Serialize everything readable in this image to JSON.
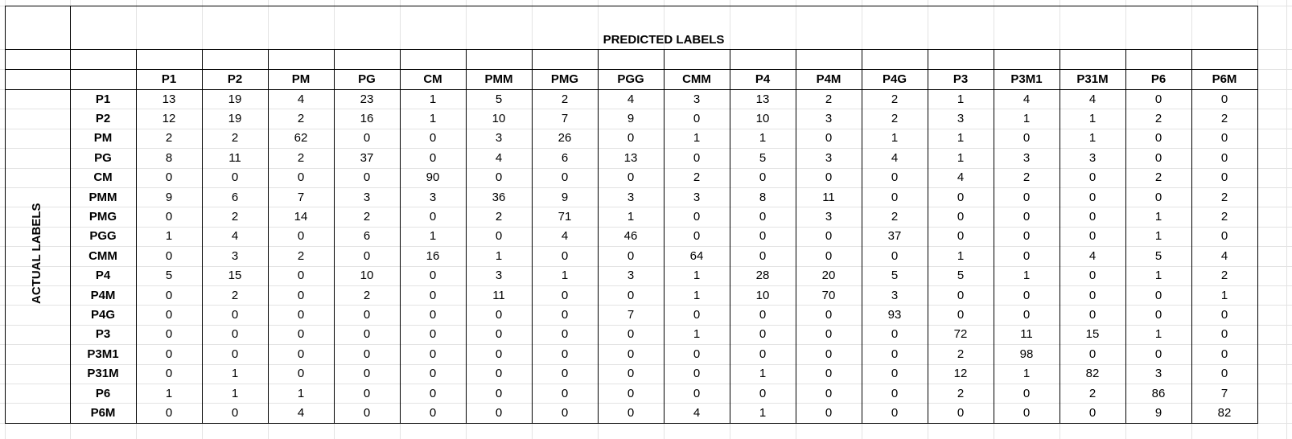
{
  "table": {
    "title": "PREDICTED LABELS",
    "side_title": "ACTUAL LABELS",
    "columns": [
      "P1",
      "P2",
      "PM",
      "PG",
      "CM",
      "PMM",
      "PMG",
      "PGG",
      "CMM",
      "P4",
      "P4M",
      "P4G",
      "P3",
      "P3M1",
      "P31M",
      "P6",
      "P6M"
    ],
    "rows": [
      {
        "label": "P1",
        "values": [
          13,
          19,
          4,
          23,
          1,
          5,
          2,
          4,
          3,
          13,
          2,
          2,
          1,
          4,
          4,
          0,
          0
        ]
      },
      {
        "label": "P2",
        "values": [
          12,
          19,
          2,
          16,
          1,
          10,
          7,
          9,
          0,
          10,
          3,
          2,
          3,
          1,
          1,
          2,
          2
        ]
      },
      {
        "label": "PM",
        "values": [
          2,
          2,
          62,
          0,
          0,
          3,
          26,
          0,
          1,
          1,
          0,
          1,
          1,
          0,
          1,
          0,
          0
        ]
      },
      {
        "label": "PG",
        "values": [
          8,
          11,
          2,
          37,
          0,
          4,
          6,
          13,
          0,
          5,
          3,
          4,
          1,
          3,
          3,
          0,
          0
        ]
      },
      {
        "label": "CM",
        "values": [
          0,
          0,
          0,
          0,
          90,
          0,
          0,
          0,
          2,
          0,
          0,
          0,
          4,
          2,
          0,
          2,
          0
        ]
      },
      {
        "label": "PMM",
        "values": [
          9,
          6,
          7,
          3,
          3,
          36,
          9,
          3,
          3,
          8,
          11,
          0,
          0,
          0,
          0,
          0,
          2
        ]
      },
      {
        "label": "PMG",
        "values": [
          0,
          2,
          14,
          2,
          0,
          2,
          71,
          1,
          0,
          0,
          3,
          2,
          0,
          0,
          0,
          1,
          2
        ]
      },
      {
        "label": "PGG",
        "values": [
          1,
          4,
          0,
          6,
          1,
          0,
          4,
          46,
          0,
          0,
          0,
          37,
          0,
          0,
          0,
          1,
          0
        ]
      },
      {
        "label": "CMM",
        "values": [
          0,
          3,
          2,
          0,
          16,
          1,
          0,
          0,
          64,
          0,
          0,
          0,
          1,
          0,
          4,
          5,
          4
        ]
      },
      {
        "label": "P4",
        "values": [
          5,
          15,
          0,
          10,
          0,
          3,
          1,
          3,
          1,
          28,
          20,
          5,
          5,
          1,
          0,
          1,
          2
        ]
      },
      {
        "label": "P4M",
        "values": [
          0,
          2,
          0,
          2,
          0,
          11,
          0,
          0,
          1,
          10,
          70,
          3,
          0,
          0,
          0,
          0,
          1
        ]
      },
      {
        "label": "P4G",
        "values": [
          0,
          0,
          0,
          0,
          0,
          0,
          0,
          7,
          0,
          0,
          0,
          93,
          0,
          0,
          0,
          0,
          0
        ]
      },
      {
        "label": "P3",
        "values": [
          0,
          0,
          0,
          0,
          0,
          0,
          0,
          0,
          1,
          0,
          0,
          0,
          72,
          11,
          15,
          1,
          0
        ]
      },
      {
        "label": "P3M1",
        "values": [
          0,
          0,
          0,
          0,
          0,
          0,
          0,
          0,
          0,
          0,
          0,
          0,
          2,
          98,
          0,
          0,
          0
        ]
      },
      {
        "label": "P31M",
        "values": [
          0,
          1,
          0,
          0,
          0,
          0,
          0,
          0,
          0,
          1,
          0,
          0,
          12,
          1,
          82,
          3,
          0
        ]
      },
      {
        "label": "P6",
        "values": [
          1,
          1,
          1,
          0,
          0,
          0,
          0,
          0,
          0,
          0,
          0,
          0,
          2,
          0,
          2,
          86,
          7
        ]
      },
      {
        "label": "P6M",
        "values": [
          0,
          0,
          4,
          0,
          0,
          0,
          0,
          0,
          4,
          1,
          0,
          0,
          0,
          0,
          0,
          9,
          82
        ]
      }
    ]
  }
}
